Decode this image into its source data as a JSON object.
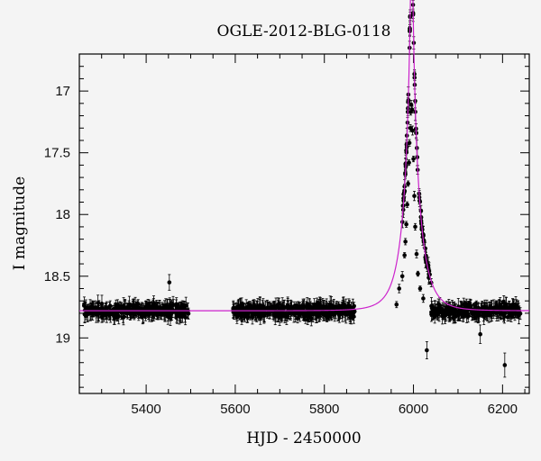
{
  "chart_data": {
    "type": "scatter",
    "title": "OGLE-2012-BLG-0118",
    "xlabel": "HJD - 2450000",
    "ylabel": "I magnitude",
    "xlim": [
      5250,
      6260
    ],
    "ylim": [
      19.45,
      16.7
    ],
    "y_inverted": true,
    "x_ticks": [
      5400,
      5600,
      5800,
      6000,
      6200
    ],
    "y_ticks": [
      17,
      17.5,
      18,
      18.5,
      19
    ],
    "y_tick_labels": [
      "17",
      "17.5",
      "18",
      "18.5",
      "19"
    ],
    "grid": false,
    "series": [
      {
        "kind": "points_with_errorbars",
        "color": "#000000",
        "baseline_mag": 18.78,
        "scatter_mag": 0.05,
        "segments": [
          [
            5260,
            5495
          ],
          [
            5595,
            5870
          ],
          [
            5975,
            6240
          ]
        ],
        "peak_points": [
          {
            "x": 5962,
            "y": 18.73
          },
          {
            "x": 5968,
            "y": 18.6
          },
          {
            "x": 5975,
            "y": 18.5
          },
          {
            "x": 5980,
            "y": 18.33
          },
          {
            "x": 5982,
            "y": 18.22
          },
          {
            "x": 5984,
            "y": 18.08
          },
          {
            "x": 5986,
            "y": 17.92
          },
          {
            "x": 5988,
            "y": 17.75
          },
          {
            "x": 5990,
            "y": 17.58
          },
          {
            "x": 5991,
            "y": 17.42
          },
          {
            "x": 5993,
            "y": 17.3
          },
          {
            "x": 5994,
            "y": 17.17
          },
          {
            "x": 5995,
            "y": 17.11
          },
          {
            "x": 5997,
            "y": 17.15
          },
          {
            "x": 5998,
            "y": 17.32
          },
          {
            "x": 6000,
            "y": 17.55
          },
          {
            "x": 6002,
            "y": 17.85
          },
          {
            "x": 6004,
            "y": 18.1
          },
          {
            "x": 6007,
            "y": 18.32
          },
          {
            "x": 6010,
            "y": 18.48
          },
          {
            "x": 6015,
            "y": 18.6
          },
          {
            "x": 6022,
            "y": 18.68
          }
        ],
        "outliers": [
          {
            "x": 6030,
            "y": 19.1
          },
          {
            "x": 6205,
            "y": 19.22
          },
          {
            "x": 6150,
            "y": 18.97
          },
          {
            "x": 5452,
            "y": 18.55
          }
        ]
      },
      {
        "kind": "model_curve",
        "color": "#cc22cc",
        "baseline_mag": 18.78,
        "t0": 5996,
        "u0": 0.065,
        "tE": 38
      }
    ]
  }
}
